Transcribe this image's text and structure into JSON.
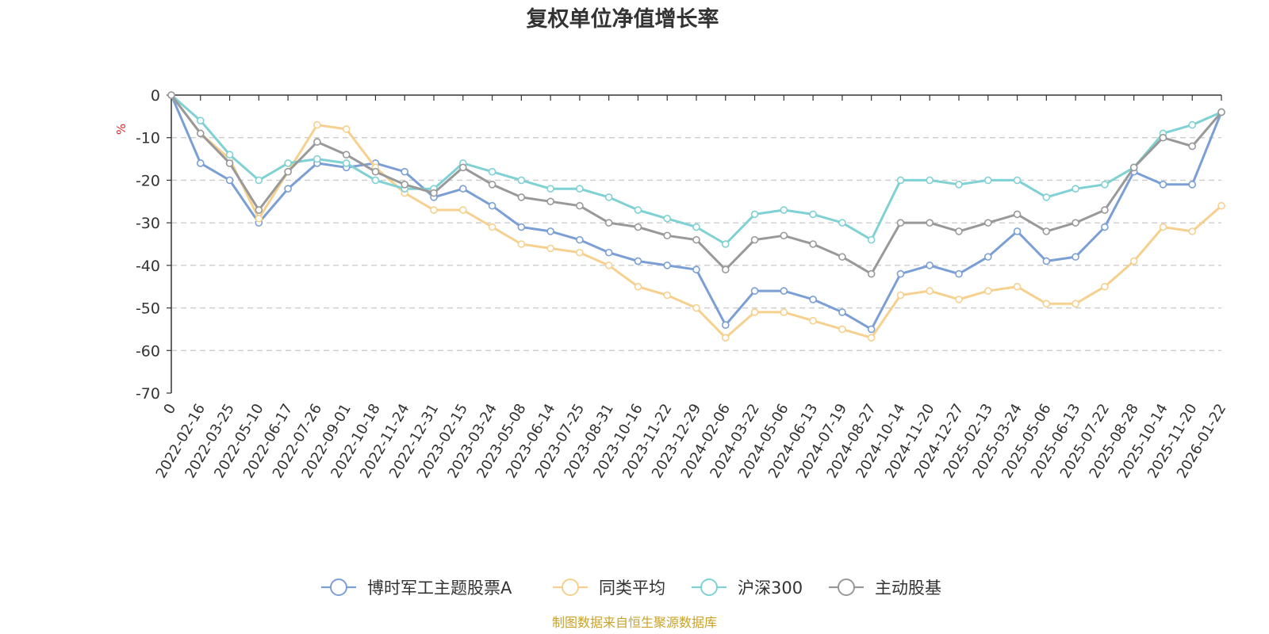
{
  "chart_data": {
    "type": "line",
    "title": "复权单位净值增长率",
    "ylabel": "%",
    "ylim": [
      -70,
      0
    ],
    "yticks": [
      0,
      -10,
      -20,
      -30,
      -40,
      -50,
      -60,
      -70
    ],
    "grid": true,
    "legend_position": "bottom",
    "source": "制图数据来自恒生聚源数据库",
    "categories": [
      "0",
      "2022-02-16",
      "2022-03-25",
      "2022-05-10",
      "2022-06-17",
      "2022-07-26",
      "2022-09-01",
      "2022-10-18",
      "2022-11-24",
      "2022-12-31",
      "2023-02-15",
      "2023-03-24",
      "2023-05-08",
      "2023-06-14",
      "2023-07-25",
      "2023-08-31",
      "2023-10-16",
      "2023-11-22",
      "2023-12-29",
      "2024-02-06",
      "2024-03-22",
      "2024-05-06",
      "2024-06-13",
      "2024-07-19",
      "2024-08-27",
      "2024-10-14",
      "2024-11-20",
      "2024-12-27",
      "2025-02-13",
      "2025-03-24",
      "2025-05-06",
      "2025-06-13",
      "2025-07-22",
      "2025-08-28",
      "2025-10-14",
      "2025-11-20",
      "2026-01-22"
    ],
    "series": [
      {
        "name": "博时军工主题股票A",
        "color": "#7b9fd4",
        "values": [
          0,
          -16,
          -20,
          -30,
          -22,
          -16,
          -17,
          -16,
          -18,
          -24,
          -22,
          -26,
          -31,
          -32,
          -34,
          -37,
          -39,
          -40,
          -41,
          -54,
          -46,
          -46,
          -48,
          -51,
          -55,
          -42,
          -40,
          -42,
          -38,
          -32,
          -39,
          -38,
          -31,
          -18,
          -21,
          -21,
          -4
        ]
      },
      {
        "name": "同类平均",
        "color": "#f6d08e",
        "values": [
          0,
          -9,
          -15,
          -29,
          -18,
          -7,
          -8,
          -17,
          -23,
          -27,
          -27,
          -31,
          -35,
          -36,
          -37,
          -40,
          -45,
          -47,
          -50,
          -57,
          -51,
          -51,
          -53,
          -55,
          -57,
          -47,
          -46,
          -48,
          -46,
          -45,
          -49,
          -49,
          -45,
          -39,
          -31,
          -32,
          -26
        ]
      },
      {
        "name": "沪深300",
        "color": "#7fd1d3",
        "values": [
          0,
          -6,
          -14,
          -20,
          -16,
          -15,
          -16,
          -20,
          -22,
          -22,
          -16,
          -18,
          -20,
          -22,
          -22,
          -24,
          -27,
          -29,
          -31,
          -35,
          -28,
          -27,
          -28,
          -30,
          -34,
          -20,
          -20,
          -21,
          -20,
          -20,
          -24,
          -22,
          -21,
          -17,
          -9,
          -7,
          -4
        ]
      },
      {
        "name": "主动股基",
        "color": "#999999",
        "values": [
          0,
          -9,
          -16,
          -27,
          -18,
          -11,
          -14,
          -18,
          -21,
          -23,
          -17,
          -21,
          -24,
          -25,
          -26,
          -30,
          -31,
          -33,
          -34,
          -41,
          -34,
          -33,
          -35,
          -38,
          -42,
          -30,
          -30,
          -32,
          -30,
          -28,
          -32,
          -30,
          -27,
          -17,
          -10,
          -12,
          -4
        ]
      }
    ]
  }
}
